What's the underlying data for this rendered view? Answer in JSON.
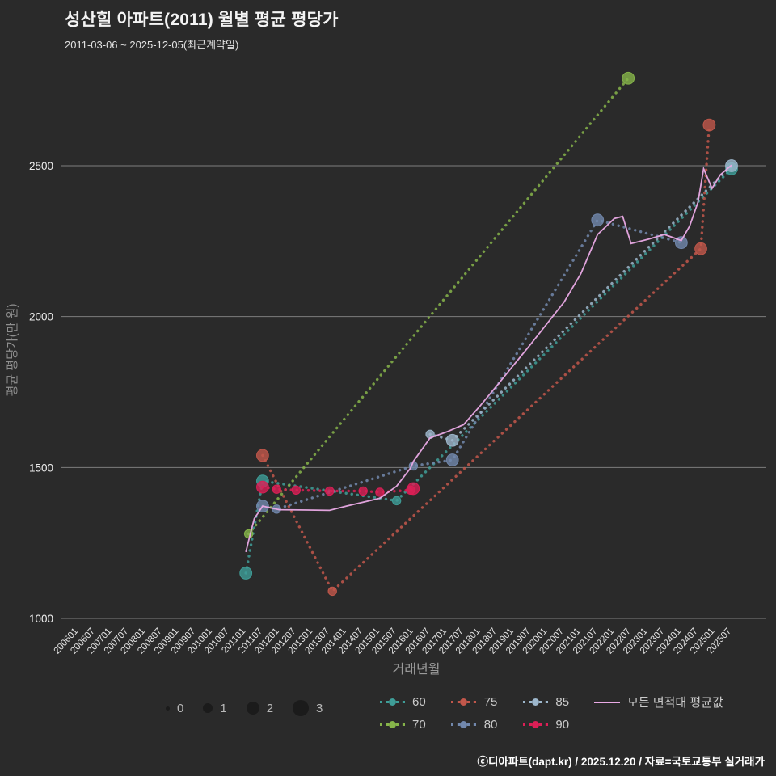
{
  "header": {
    "title": "성산힐 아파트(2011) 월별 평균 평당가",
    "subtitle": "2011-03-06 ~ 2025-12-05(최근계약일)"
  },
  "chart_data": {
    "type": "scatter",
    "title": "성산힐 아파트(2011) 월별 평균 평당가",
    "xlabel": "거래년월",
    "ylabel": "평균 평당가(만 원)",
    "ylim": [
      1000,
      2870
    ],
    "yticks": [
      1000,
      1500,
      2000,
      2500
    ],
    "ytick_labels": [
      "1000",
      "1500",
      "2000",
      "2500"
    ],
    "xticks": [
      "200601",
      "200607",
      "200701",
      "200707",
      "200801",
      "200807",
      "200901",
      "200907",
      "201001",
      "201007",
      "201101",
      "201107",
      "201201",
      "201207",
      "201301",
      "201307",
      "201401",
      "201407",
      "201501",
      "201507",
      "201601",
      "201607",
      "201701",
      "201707",
      "201801",
      "201807",
      "201901",
      "201907",
      "202001",
      "202007",
      "202101",
      "202107",
      "202201",
      "202207",
      "202301",
      "202307",
      "202401",
      "202407",
      "202501",
      "202507"
    ],
    "size_note": "third value of each point is marker size class 0-3",
    "series": [
      {
        "name": "60",
        "color": "#3f9e98",
        "points": [
          [
            201101,
            1150,
            2
          ],
          [
            201107,
            1455,
            2
          ],
          [
            201507,
            1390,
            1
          ],
          [
            202507,
            2490,
            2
          ]
        ]
      },
      {
        "name": "70",
        "color": "#86b44a",
        "points": [
          [
            201102,
            1280,
            1
          ],
          [
            202206,
            2790,
            2
          ]
        ]
      },
      {
        "name": "75",
        "color": "#c2574b",
        "points": [
          [
            201107,
            1540,
            2
          ],
          [
            201308,
            1090,
            1
          ],
          [
            202408,
            2225,
            2
          ],
          [
            202411,
            2635,
            2
          ]
        ]
      },
      {
        "name": "80",
        "color": "#7288ad",
        "points": [
          [
            201107,
            1372,
            2
          ],
          [
            201112,
            1362,
            1
          ],
          [
            201601,
            1505,
            1
          ],
          [
            201703,
            1525,
            2
          ],
          [
            202107,
            2320,
            2
          ],
          [
            202401,
            2245,
            2
          ]
        ]
      },
      {
        "name": "85",
        "color": "#9db7cc",
        "points": [
          [
            201607,
            1610,
            1
          ],
          [
            201703,
            1590,
            2
          ],
          [
            202507,
            2500,
            2
          ]
        ]
      },
      {
        "name": "90",
        "color": "#dc1f56",
        "points": [
          [
            201107,
            1435,
            2
          ],
          [
            201112,
            1428,
            1
          ],
          [
            201207,
            1425,
            1
          ],
          [
            201307,
            1422,
            1
          ],
          [
            201407,
            1422,
            1
          ],
          [
            201501,
            1418,
            1
          ],
          [
            201512,
            1425,
            1
          ],
          [
            201601,
            1430,
            2
          ]
        ]
      }
    ],
    "average_line": {
      "name": "모든 면적대 평균값",
      "color": "#eaaae6",
      "points": [
        [
          201101,
          1220
        ],
        [
          201102,
          1258
        ],
        [
          201104,
          1330
        ],
        [
          201107,
          1372
        ],
        [
          201201,
          1360
        ],
        [
          201307,
          1358
        ],
        [
          201401,
          1372
        ],
        [
          201501,
          1398
        ],
        [
          201507,
          1438
        ],
        [
          201512,
          1498
        ],
        [
          201601,
          1520
        ],
        [
          201607,
          1598
        ],
        [
          201701,
          1618
        ],
        [
          201707,
          1642
        ],
        [
          201801,
          1705
        ],
        [
          201807,
          1772
        ],
        [
          201901,
          1840
        ],
        [
          201907,
          1908
        ],
        [
          202001,
          1978
        ],
        [
          202007,
          2048
        ],
        [
          202101,
          2142
        ],
        [
          202107,
          2272
        ],
        [
          202201,
          2325
        ],
        [
          202204,
          2332
        ],
        [
          202207,
          2242
        ],
        [
          202301,
          2256
        ],
        [
          202307,
          2272
        ],
        [
          202401,
          2252
        ],
        [
          202404,
          2300
        ],
        [
          202407,
          2380
        ],
        [
          202409,
          2490
        ],
        [
          202412,
          2425
        ],
        [
          202503,
          2470
        ],
        [
          202507,
          2502
        ]
      ]
    }
  },
  "legend": {
    "sizes": [
      {
        "label": "0",
        "r": 2.5
      },
      {
        "label": "1",
        "r": 6
      },
      {
        "label": "2",
        "r": 8
      },
      {
        "label": "3",
        "r": 10
      }
    ],
    "rows": [
      [
        {
          "label": "60",
          "color": "#3f9e98"
        },
        {
          "label": "75",
          "color": "#c2574b"
        },
        {
          "label": "85",
          "color": "#9db7cc"
        },
        {
          "label": "모든 면적대 평균값",
          "color": "#eaaae6",
          "line": true
        }
      ],
      [
        {
          "label": "70",
          "color": "#86b44a"
        },
        {
          "label": "80",
          "color": "#7288ad"
        },
        {
          "label": "90",
          "color": "#dc1f56"
        }
      ]
    ]
  },
  "footer": {
    "credit": "ⓒ디아파트(dapt.kr) / 2025.12.20 / 자료=국토교통부 실거래가"
  }
}
